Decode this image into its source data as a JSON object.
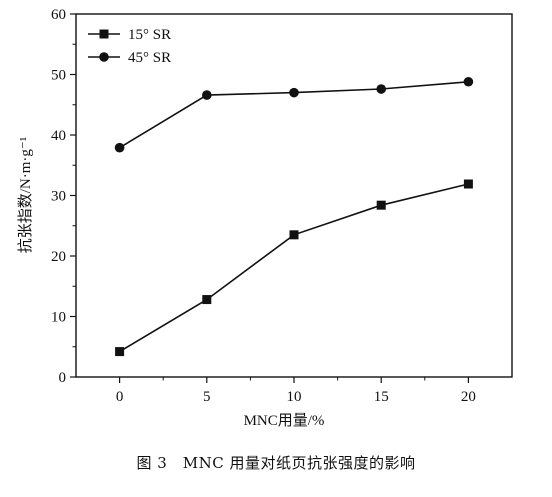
{
  "caption": "图 3　MNC 用量对纸页抗张强度的影响",
  "chart_data": {
    "type": "line",
    "title": "",
    "xlabel": "MNC用量/%",
    "ylabel": "抗张指数/N·m·g⁻¹",
    "xlim": [
      -2.5,
      22.5
    ],
    "ylim": [
      0,
      60
    ],
    "x_ticks": [
      0,
      5,
      10,
      15,
      20
    ],
    "y_ticks": [
      0,
      10,
      20,
      30,
      40,
      50,
      60
    ],
    "grid": false,
    "legend_position": "top-left",
    "series": [
      {
        "name": "15° SR",
        "marker": "square",
        "color": "#111111",
        "x": [
          0,
          5,
          10,
          15,
          20
        ],
        "y": [
          4.2,
          12.8,
          23.5,
          28.4,
          31.9
        ]
      },
      {
        "name": "45° SR",
        "marker": "circle",
        "color": "#111111",
        "x": [
          0,
          5,
          10,
          15,
          20
        ],
        "y": [
          37.9,
          46.6,
          47.0,
          47.6,
          48.8
        ]
      }
    ]
  }
}
